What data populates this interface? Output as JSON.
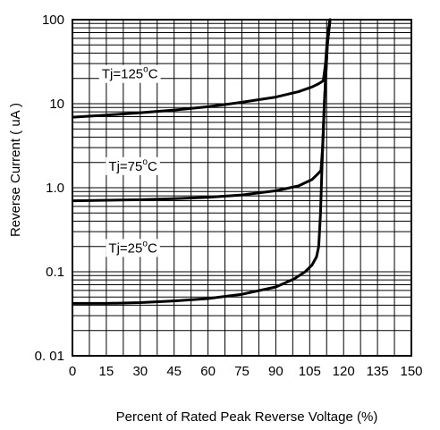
{
  "chart_data": {
    "type": "line",
    "title": "",
    "xlabel": "Percent of Rated Peak Reverse Voltage (%)",
    "ylabel": "Reverse Current ( uA )",
    "x_scale": "linear",
    "y_scale": "log",
    "xlim": [
      0,
      150
    ],
    "ylim": [
      0.01,
      100
    ],
    "x_ticks": [
      0,
      15,
      30,
      45,
      60,
      75,
      90,
      105,
      120,
      135,
      150
    ],
    "x_tick_labels": [
      "0",
      "15",
      "30",
      "45",
      "60",
      "75",
      "90",
      "105",
      "120",
      "135",
      "150"
    ],
    "y_ticks": [
      0.01,
      0.1,
      1,
      10,
      100
    ],
    "y_tick_labels": [
      "0. 01",
      "0.1",
      "1.0",
      "10",
      "100"
    ],
    "grid": true,
    "legend": "none",
    "colors": {
      "line": "#000000",
      "grid": "#000000",
      "background": "#ffffff"
    },
    "series": [
      {
        "name": "Tj=125°C",
        "label_main": "Tj=125",
        "label_sup": "o",
        "label_tail": "C",
        "label_at": [
          13,
          20
        ],
        "x": [
          0,
          15,
          30,
          45,
          60,
          75,
          90,
          100,
          106,
          109,
          111,
          112,
          112.8,
          114
        ],
        "y": [
          6.9,
          7.3,
          7.8,
          8.4,
          9.2,
          10.4,
          12.0,
          13.9,
          15.8,
          17.3,
          18.7,
          30,
          60,
          100
        ]
      },
      {
        "name": "Tj=75°C",
        "label_main": "Tj=75",
        "label_sup": "o",
        "label_tail": "C",
        "label_at": [
          16,
          1.6
        ],
        "x": [
          0,
          15,
          30,
          45,
          60,
          75,
          90,
          100,
          106,
          108.5,
          110,
          110.7,
          111.5,
          112.8,
          114
        ],
        "y": [
          0.7,
          0.71,
          0.72,
          0.74,
          0.77,
          0.82,
          0.92,
          1.05,
          1.25,
          1.45,
          1.6,
          3,
          10,
          50,
          100
        ]
      },
      {
        "name": "Tj=25°C",
        "label_main": "Tj=25",
        "label_sup": "o",
        "label_tail": "C",
        "label_at": [
          16,
          0.17
        ],
        "x": [
          0,
          15,
          30,
          45,
          60,
          75,
          90,
          98,
          103,
          106,
          108,
          109,
          109.8,
          110.5,
          111.5,
          112.8,
          114
        ],
        "y": [
          0.042,
          0.042,
          0.043,
          0.045,
          0.048,
          0.054,
          0.066,
          0.082,
          0.1,
          0.12,
          0.15,
          0.2,
          0.5,
          2,
          10,
          50,
          100
        ]
      }
    ]
  }
}
